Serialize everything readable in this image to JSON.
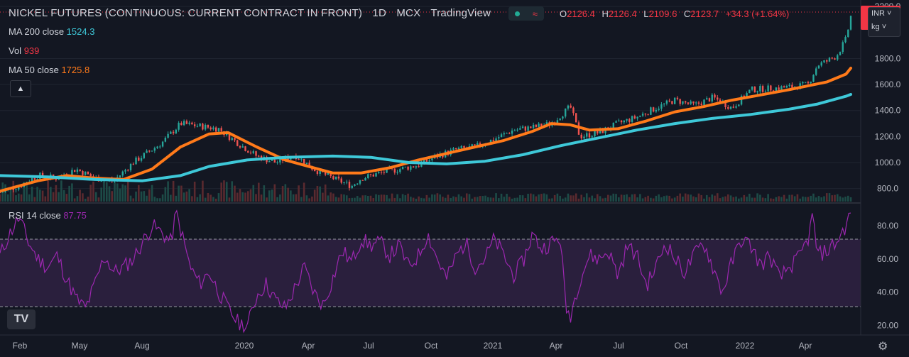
{
  "header": {
    "symbol": "NICKEL FUTURES (CONTINUOUS: CURRENT CONTRACT IN FRONT)",
    "interval": "1D",
    "exchange": "MCX",
    "source": "TradingView",
    "toggle_icon": "wave-icon",
    "ohlc": {
      "o_label": "O",
      "o": "2126.4",
      "h_label": "H",
      "h": "2126.4",
      "l_label": "L",
      "l": "2109.6",
      "c_label": "C",
      "c": "2123.7",
      "change": "+34.3 (+1.64%)"
    }
  },
  "legend": {
    "ma200": {
      "label": "MA 200 close",
      "value": "1524.3",
      "color": "#3ec8d8"
    },
    "vol": {
      "label": "Vol",
      "value": "939",
      "color": "#f23645"
    },
    "ma50": {
      "label": "MA 50 close",
      "value": "1725.8",
      "color": "#ff7a1a"
    },
    "rsi": {
      "label": "RSI 14 close",
      "value": "87.75",
      "color": "#9c27b0"
    },
    "collapse_icon": "chevron-up-icon"
  },
  "price_scale": {
    "currency": "INR",
    "unit": "kg",
    "last_price_tag": "2"
  },
  "colors": {
    "background": "#131722",
    "up": "#26a69a",
    "down": "#ef5350",
    "rsi_band": "#2a1f3d",
    "grid": "#1f2430"
  },
  "chart_data": [
    {
      "type": "candlestick",
      "title": "NICKEL FUTURES (CONTINUOUS: CURRENT CONTRACT IN FRONT)",
      "x_ticks": [
        "Feb",
        "May",
        "Aug",
        "2020",
        "Apr",
        "Jul",
        "Oct",
        "2021",
        "Apr",
        "Jul",
        "Oct",
        "2022",
        "Apr"
      ],
      "y_ticks": [
        "800.0",
        "1000.0",
        "1200.0",
        "1400.0",
        "1600.0",
        "1800.0",
        "2200.0"
      ],
      "ylim": [
        700,
        2250
      ],
      "price_path": [
        [
          0,
          770
        ],
        [
          0.02,
          820
        ],
        [
          0.04,
          900
        ],
        [
          0.06,
          880
        ],
        [
          0.08,
          950
        ],
        [
          0.1,
          880
        ],
        [
          0.12,
          860
        ],
        [
          0.14,
          1000
        ],
        [
          0.17,
          1150
        ],
        [
          0.19,
          1300
        ],
        [
          0.21,
          1280
        ],
        [
          0.23,
          1260
        ],
        [
          0.25,
          1150
        ],
        [
          0.27,
          1050
        ],
        [
          0.29,
          1000
        ],
        [
          0.31,
          1060
        ],
        [
          0.33,
          950
        ],
        [
          0.35,
          880
        ],
        [
          0.37,
          820
        ],
        [
          0.38,
          880
        ],
        [
          0.4,
          920
        ],
        [
          0.42,
          950
        ],
        [
          0.44,
          980
        ],
        [
          0.46,
          1050
        ],
        [
          0.48,
          1100
        ],
        [
          0.5,
          1120
        ],
        [
          0.52,
          1180
        ],
        [
          0.54,
          1250
        ],
        [
          0.56,
          1270
        ],
        [
          0.58,
          1300
        ],
        [
          0.6,
          1430
        ],
        [
          0.61,
          1200
        ],
        [
          0.63,
          1230
        ],
        [
          0.65,
          1300
        ],
        [
          0.67,
          1350
        ],
        [
          0.69,
          1420
        ],
        [
          0.71,
          1480
        ],
        [
          0.73,
          1440
        ],
        [
          0.75,
          1500
        ],
        [
          0.77,
          1420
        ],
        [
          0.79,
          1560
        ],
        [
          0.81,
          1570
        ],
        [
          0.83,
          1580
        ],
        [
          0.85,
          1600
        ],
        [
          0.86,
          1750
        ],
        [
          0.87,
          1780
        ],
        [
          0.88,
          1820
        ],
        [
          0.89,
          1950
        ],
        [
          0.895,
          2124
        ]
      ],
      "series": [
        {
          "name": "MA 50 close",
          "values": [
            [
              0,
              780
            ],
            [
              0.04,
              860
            ],
            [
              0.07,
              900
            ],
            [
              0.1,
              880
            ],
            [
              0.13,
              870
            ],
            [
              0.16,
              950
            ],
            [
              0.19,
              1120
            ],
            [
              0.22,
              1220
            ],
            [
              0.24,
              1230
            ],
            [
              0.27,
              1120
            ],
            [
              0.3,
              1020
            ],
            [
              0.33,
              960
            ],
            [
              0.35,
              920
            ],
            [
              0.38,
              920
            ],
            [
              0.41,
              960
            ],
            [
              0.44,
              1020
            ],
            [
              0.47,
              1070
            ],
            [
              0.5,
              1120
            ],
            [
              0.53,
              1170
            ],
            [
              0.56,
              1240
            ],
            [
              0.58,
              1300
            ],
            [
              0.6,
              1290
            ],
            [
              0.62,
              1250
            ],
            [
              0.65,
              1260
            ],
            [
              0.68,
              1320
            ],
            [
              0.71,
              1390
            ],
            [
              0.74,
              1430
            ],
            [
              0.77,
              1480
            ],
            [
              0.8,
              1520
            ],
            [
              0.83,
              1560
            ],
            [
              0.85,
              1590
            ],
            [
              0.87,
              1620
            ],
            [
              0.89,
              1680
            ],
            [
              0.895,
              1726
            ]
          ]
        },
        {
          "name": "MA 200 close",
          "values": [
            [
              0,
              900
            ],
            [
              0.05,
              890
            ],
            [
              0.1,
              870
            ],
            [
              0.15,
              860
            ],
            [
              0.19,
              900
            ],
            [
              0.22,
              970
            ],
            [
              0.26,
              1020
            ],
            [
              0.3,
              1040
            ],
            [
              0.35,
              1050
            ],
            [
              0.39,
              1040
            ],
            [
              0.43,
              1000
            ],
            [
              0.47,
              990
            ],
            [
              0.51,
              1010
            ],
            [
              0.55,
              1060
            ],
            [
              0.59,
              1130
            ],
            [
              0.63,
              1190
            ],
            [
              0.67,
              1250
            ],
            [
              0.71,
              1300
            ],
            [
              0.75,
              1340
            ],
            [
              0.79,
              1370
            ],
            [
              0.83,
              1410
            ],
            [
              0.86,
              1450
            ],
            [
              0.89,
              1510
            ],
            [
              0.895,
              1524
            ]
          ]
        }
      ]
    },
    {
      "type": "line",
      "title": "RSI 14 close",
      "y_ticks": [
        "20.00",
        "40.00",
        "60.00",
        "80.00"
      ],
      "ylim": [
        15,
        92
      ],
      "band": [
        30,
        70
      ],
      "series": [
        {
          "name": "RSI 14 close",
          "values": [
            [
              0,
              62
            ],
            [
              0.01,
              75
            ],
            [
              0.02,
              85
            ],
            [
              0.03,
              70
            ],
            [
              0.04,
              60
            ],
            [
              0.05,
              55
            ],
            [
              0.06,
              62
            ],
            [
              0.07,
              48
            ],
            [
              0.08,
              36
            ],
            [
              0.09,
              30
            ],
            [
              0.1,
              45
            ],
            [
              0.11,
              62
            ],
            [
              0.12,
              52
            ],
            [
              0.13,
              55
            ],
            [
              0.14,
              60
            ],
            [
              0.15,
              70
            ],
            [
              0.16,
              80
            ],
            [
              0.17,
              76
            ],
            [
              0.18,
              70
            ],
            [
              0.185,
              88
            ],
            [
              0.19,
              78
            ],
            [
              0.2,
              55
            ],
            [
              0.21,
              45
            ],
            [
              0.22,
              52
            ],
            [
              0.23,
              40
            ],
            [
              0.24,
              30
            ],
            [
              0.25,
              22
            ],
            [
              0.26,
              19
            ],
            [
              0.27,
              38
            ],
            [
              0.28,
              45
            ],
            [
              0.29,
              35
            ],
            [
              0.3,
              30
            ],
            [
              0.31,
              42
            ],
            [
              0.32,
              55
            ],
            [
              0.33,
              40
            ],
            [
              0.34,
              32
            ],
            [
              0.35,
              48
            ],
            [
              0.36,
              65
            ],
            [
              0.37,
              58
            ],
            [
              0.38,
              72
            ],
            [
              0.39,
              68
            ],
            [
              0.4,
              70
            ],
            [
              0.41,
              62
            ],
            [
              0.42,
              68
            ],
            [
              0.43,
              55
            ],
            [
              0.44,
              62
            ],
            [
              0.45,
              75
            ],
            [
              0.46,
              60
            ],
            [
              0.47,
              48
            ],
            [
              0.48,
              62
            ],
            [
              0.49,
              70
            ],
            [
              0.5,
              55
            ],
            [
              0.51,
              60
            ],
            [
              0.52,
              72
            ],
            [
              0.53,
              62
            ],
            [
              0.54,
              50
            ],
            [
              0.55,
              58
            ],
            [
              0.56,
              75
            ],
            [
              0.57,
              66
            ],
            [
              0.58,
              70
            ],
            [
              0.59,
              72
            ],
            [
              0.595,
              30
            ],
            [
              0.6,
              26
            ],
            [
              0.61,
              48
            ],
            [
              0.62,
              62
            ],
            [
              0.63,
              60
            ],
            [
              0.64,
              65
            ],
            [
              0.65,
              50
            ],
            [
              0.66,
              68
            ],
            [
              0.67,
              62
            ],
            [
              0.68,
              44
            ],
            [
              0.69,
              55
            ],
            [
              0.7,
              70
            ],
            [
              0.71,
              60
            ],
            [
              0.72,
              52
            ],
            [
              0.73,
              62
            ],
            [
              0.74,
              70
            ],
            [
              0.75,
              55
            ],
            [
              0.76,
              40
            ],
            [
              0.77,
              58
            ],
            [
              0.78,
              72
            ],
            [
              0.79,
              68
            ],
            [
              0.8,
              56
            ],
            [
              0.81,
              62
            ],
            [
              0.82,
              48
            ],
            [
              0.83,
              55
            ],
            [
              0.84,
              60
            ],
            [
              0.85,
              72
            ],
            [
              0.855,
              86
            ],
            [
              0.86,
              62
            ],
            [
              0.87,
              65
            ],
            [
              0.88,
              70
            ],
            [
              0.89,
              80
            ],
            [
              0.895,
              88
            ]
          ]
        }
      ]
    }
  ]
}
